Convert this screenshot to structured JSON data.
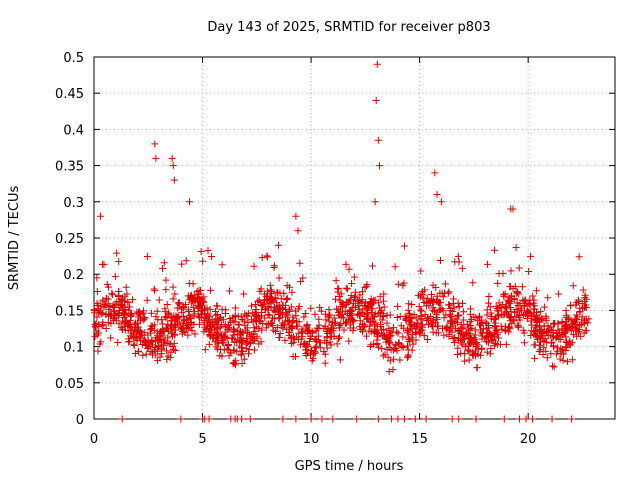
{
  "chart_data": {
    "type": "scatter",
    "title": "Day 143 of 2025, SRMTID for receiver p803",
    "xlabel": "GPS time / hours",
    "ylabel": "SRMTID / TECUs",
    "xlim": [
      0,
      24
    ],
    "ylim": [
      0,
      0.5
    ],
    "xticks": [
      0,
      5,
      10,
      15,
      20
    ],
    "xtick_labels": [
      "0",
      "5",
      "10",
      "15",
      "20"
    ],
    "yticks": [
      0,
      0.05,
      0.1,
      0.15,
      0.2,
      0.25,
      0.3,
      0.35,
      0.4,
      0.45,
      0.5
    ],
    "ytick_labels": [
      "0",
      "0.05",
      "0.1",
      "0.15",
      "0.2",
      "0.25",
      "0.3",
      "0.35",
      "0.4",
      "0.45",
      "0.5"
    ],
    "grid": true,
    "legend": "none",
    "marker": "plus",
    "color": "#e00000",
    "points_range": [
      0,
      22.8
    ],
    "n_points": 1800,
    "baseline_mean": 0.13,
    "baseline_spread": 0.035,
    "series": [
      {
        "name": "SRMTID outliers",
        "x": [
          0.3,
          2.8,
          2.85,
          3.6,
          3.65,
          3.7,
          4.4,
          8.5,
          9.3,
          9.4,
          12.95,
          13.0,
          13.05,
          13.1,
          13.15,
          15.7,
          15.8,
          16.0,
          19.2,
          19.3
        ],
        "y": [
          0.28,
          0.38,
          0.36,
          0.36,
          0.35,
          0.33,
          0.3,
          0.24,
          0.28,
          0.26,
          0.3,
          0.44,
          0.49,
          0.385,
          0.35,
          0.34,
          0.31,
          0.3,
          0.29,
          0.29
        ]
      }
    ],
    "zero_values": {
      "x": [
        1.3,
        4.0,
        5.0,
        5.1,
        5.3,
        6.3,
        6.5,
        6.6,
        6.8,
        7.2,
        8.7,
        9.3,
        10.0,
        10.5,
        11.0,
        12.1,
        13.1,
        13.7,
        14.0,
        14.3,
        14.8,
        15.3,
        16.5,
        16.8,
        17.6,
        18.9,
        19.6,
        19.9,
        20.2,
        21.1,
        22.0
      ]
    }
  }
}
